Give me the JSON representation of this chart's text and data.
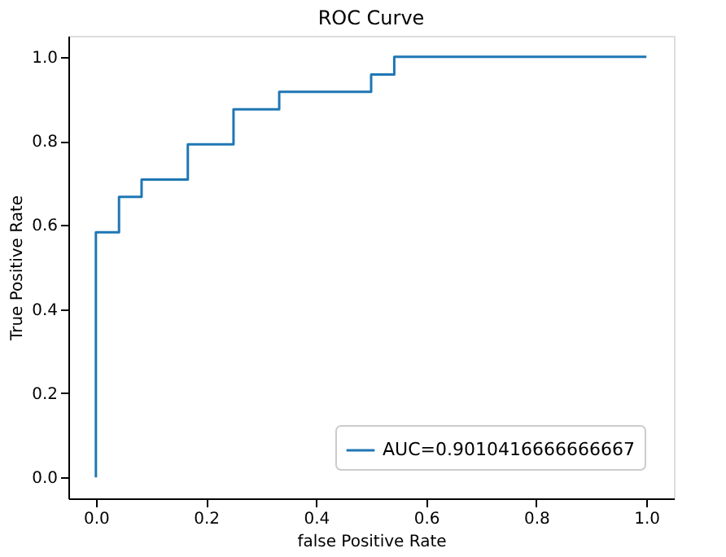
{
  "chart_data": {
    "type": "step",
    "title": "ROC Curve",
    "xlabel": "false Positive Rate",
    "ylabel": "True Positive Rate",
    "x": [
      0,
      0,
      0.042,
      0.083,
      0.167,
      0.25,
      0.333,
      0.5,
      0.542,
      1
    ],
    "series": [
      {
        "name": "AUC=0.9010416666666667",
        "color": "#1f77b4",
        "values": [
          0,
          0.583,
          0.667,
          0.708,
          0.792,
          0.875,
          0.917,
          0.958,
          1,
          1
        ]
      }
    ],
    "xlim": [
      -0.05,
      1.05
    ],
    "ylim": [
      -0.05,
      1.05
    ],
    "xticks": [
      {
        "value": 0,
        "label": "0.0"
      },
      {
        "value": 0.2,
        "label": "0.2"
      },
      {
        "value": 0.4,
        "label": "0.4"
      },
      {
        "value": 0.6,
        "label": "0.6"
      },
      {
        "value": 0.8,
        "label": "0.8"
      },
      {
        "value": 1,
        "label": "1.0"
      }
    ],
    "yticks": [
      {
        "value": 0,
        "label": "0.0"
      },
      {
        "value": 0.2,
        "label": "0.2"
      },
      {
        "value": 0.4,
        "label": "0.4"
      },
      {
        "value": 0.6,
        "label": "0.6"
      },
      {
        "value": 0.8,
        "label": "0.8"
      },
      {
        "value": 1,
        "label": "1.0"
      }
    ],
    "grid": false,
    "legend": "bottom right"
  }
}
